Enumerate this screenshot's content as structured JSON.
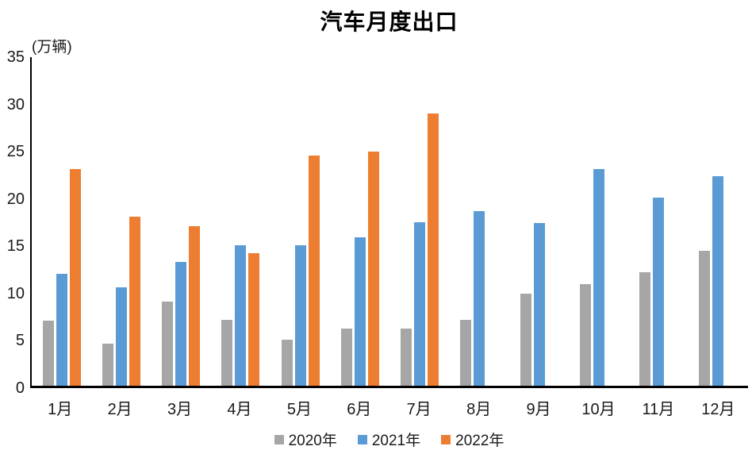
{
  "chart_data": {
    "type": "bar",
    "title": "汽车月度出口",
    "unit_label": "(万辆)",
    "categories": [
      "1月",
      "2月",
      "3月",
      "4月",
      "5月",
      "6月",
      "7月",
      "8月",
      "9月",
      "10月",
      "11月",
      "12月"
    ],
    "series": [
      {
        "name": "2020年",
        "color": "#A6A6A6",
        "values": [
          6.9,
          4.5,
          9.0,
          7.0,
          4.9,
          6.1,
          6.1,
          7.0,
          9.8,
          10.8,
          12.1,
          14.4
        ]
      },
      {
        "name": "2021年",
        "color": "#5B9BD5",
        "values": [
          11.9,
          10.5,
          13.2,
          15.0,
          15.0,
          15.8,
          17.4,
          18.6,
          17.3,
          23.1,
          20.0,
          22.3
        ]
      },
      {
        "name": "2022年",
        "color": "#ED7D31",
        "values": [
          23.1,
          18.0,
          17.0,
          14.1,
          24.5,
          24.9,
          29.0,
          null,
          null,
          null,
          null,
          null
        ]
      }
    ],
    "ylim": [
      0,
      35
    ],
    "ytick_step": 5,
    "yticks": [
      0,
      5,
      10,
      15,
      20,
      25,
      30,
      35
    ],
    "grid": false,
    "legend_position": "bottom",
    "axis_color": "#000000",
    "background_color": "#ffffff"
  }
}
